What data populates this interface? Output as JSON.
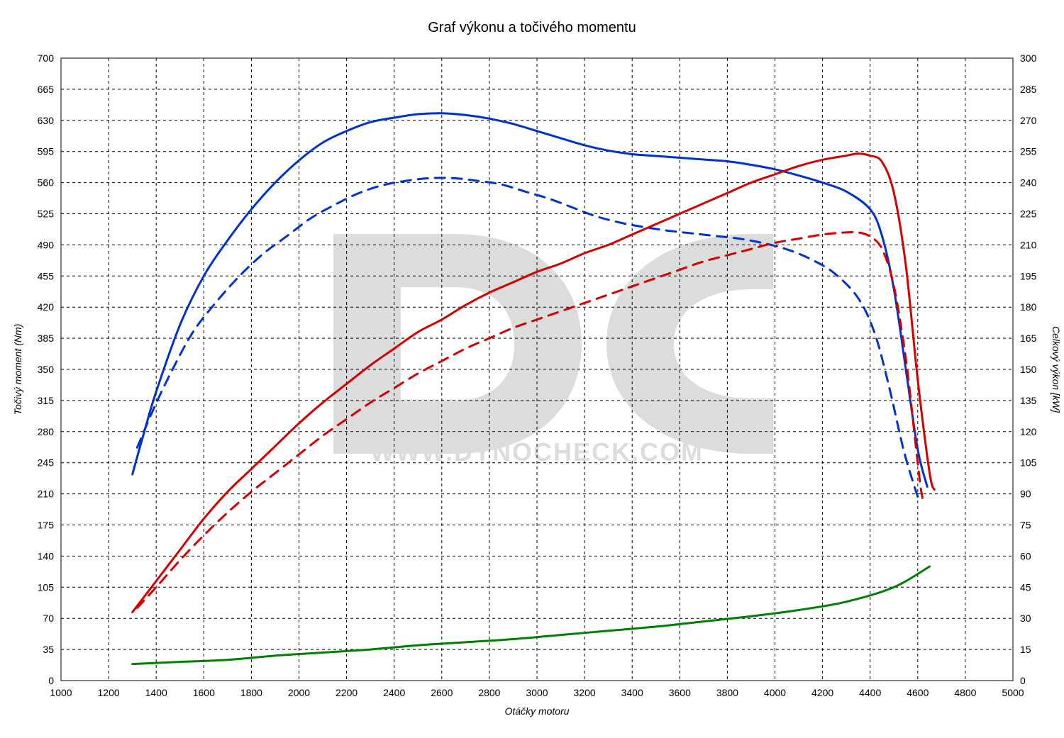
{
  "chart": {
    "type": "line",
    "title": "Graf výkonu a točivého momentu",
    "title_fontsize": 20,
    "background_color": "#ffffff",
    "grid_color": "#000000",
    "grid_dash": "4 4",
    "border_color": "#000000",
    "line_width": 3,
    "dashed_pattern": "14 10",
    "tick_fontsize": 14,
    "axis_label_fontsize": 14,
    "axis_label_style": "italic",
    "watermark": {
      "letters_color": "#dcdcdc",
      "url_text": "WWW.DYNOCHECK.COM",
      "url_color": "#cfcfcf",
      "url_fontsize": 36
    },
    "x": {
      "label": "Otáčky motoru",
      "min": 1000,
      "max": 5000,
      "tick_step": 200
    },
    "y_left": {
      "label": "Točivý moment (Nm)",
      "min": 0,
      "max": 700,
      "tick_step": 35
    },
    "y_right": {
      "label": "Celkový výkon [kW]",
      "min": 0,
      "max": 300,
      "tick_step": 15
    },
    "series": [
      {
        "name": "torque_solid",
        "axis": "left",
        "color": "#0033cc",
        "dashed": false,
        "points": [
          [
            1300,
            232
          ],
          [
            1350,
            280
          ],
          [
            1400,
            325
          ],
          [
            1500,
            400
          ],
          [
            1600,
            455
          ],
          [
            1700,
            495
          ],
          [
            1800,
            530
          ],
          [
            1900,
            560
          ],
          [
            2000,
            585
          ],
          [
            2100,
            605
          ],
          [
            2200,
            618
          ],
          [
            2300,
            628
          ],
          [
            2400,
            633
          ],
          [
            2500,
            637
          ],
          [
            2600,
            638
          ],
          [
            2700,
            636
          ],
          [
            2800,
            632
          ],
          [
            2900,
            626
          ],
          [
            3000,
            618
          ],
          [
            3100,
            610
          ],
          [
            3200,
            602
          ],
          [
            3300,
            596
          ],
          [
            3400,
            592
          ],
          [
            3500,
            590
          ],
          [
            3600,
            588
          ],
          [
            3700,
            586
          ],
          [
            3800,
            584
          ],
          [
            3900,
            580
          ],
          [
            4000,
            575
          ],
          [
            4100,
            568
          ],
          [
            4200,
            560
          ],
          [
            4300,
            550
          ],
          [
            4400,
            530
          ],
          [
            4450,
            500
          ],
          [
            4500,
            440
          ],
          [
            4550,
            350
          ],
          [
            4600,
            260
          ],
          [
            4640,
            218
          ]
        ]
      },
      {
        "name": "torque_dashed",
        "axis": "left",
        "color": "#0033cc",
        "dashed": true,
        "points": [
          [
            1320,
            262
          ],
          [
            1380,
            300
          ],
          [
            1450,
            340
          ],
          [
            1550,
            390
          ],
          [
            1650,
            425
          ],
          [
            1750,
            455
          ],
          [
            1850,
            480
          ],
          [
            1950,
            500
          ],
          [
            2050,
            520
          ],
          [
            2150,
            535
          ],
          [
            2250,
            548
          ],
          [
            2350,
            557
          ],
          [
            2450,
            562
          ],
          [
            2550,
            565
          ],
          [
            2650,
            565
          ],
          [
            2750,
            562
          ],
          [
            2850,
            558
          ],
          [
            2950,
            550
          ],
          [
            3050,
            542
          ],
          [
            3150,
            532
          ],
          [
            3250,
            522
          ],
          [
            3350,
            515
          ],
          [
            3450,
            510
          ],
          [
            3550,
            506
          ],
          [
            3650,
            503
          ],
          [
            3750,
            500
          ],
          [
            3850,
            497
          ],
          [
            3950,
            492
          ],
          [
            4050,
            485
          ],
          [
            4150,
            474
          ],
          [
            4250,
            458
          ],
          [
            4350,
            430
          ],
          [
            4420,
            390
          ],
          [
            4480,
            330
          ],
          [
            4540,
            260
          ],
          [
            4590,
            215
          ],
          [
            4610,
            200
          ]
        ]
      },
      {
        "name": "power_solid",
        "axis": "right",
        "color": "#d40000",
        "dashed": false,
        "points": [
          [
            1300,
            33
          ],
          [
            1400,
            48
          ],
          [
            1500,
            63
          ],
          [
            1600,
            78
          ],
          [
            1700,
            91
          ],
          [
            1800,
            102
          ],
          [
            1900,
            113
          ],
          [
            2000,
            124
          ],
          [
            2100,
            134
          ],
          [
            2200,
            143
          ],
          [
            2300,
            152
          ],
          [
            2400,
            160
          ],
          [
            2500,
            168
          ],
          [
            2600,
            174
          ],
          [
            2700,
            181
          ],
          [
            2800,
            187
          ],
          [
            2900,
            192
          ],
          [
            3000,
            197
          ],
          [
            3100,
            201
          ],
          [
            3200,
            206
          ],
          [
            3300,
            210
          ],
          [
            3400,
            215
          ],
          [
            3500,
            220
          ],
          [
            3600,
            225
          ],
          [
            3700,
            230
          ],
          [
            3800,
            235
          ],
          [
            3900,
            240
          ],
          [
            4000,
            244
          ],
          [
            4100,
            248
          ],
          [
            4200,
            251
          ],
          [
            4300,
            253
          ],
          [
            4350,
            254
          ],
          [
            4400,
            253
          ],
          [
            4450,
            250
          ],
          [
            4500,
            235
          ],
          [
            4550,
            200
          ],
          [
            4600,
            145
          ],
          [
            4650,
            100
          ],
          [
            4670,
            92
          ]
        ]
      },
      {
        "name": "power_dashed",
        "axis": "right",
        "color": "#d40000",
        "dashed": true,
        "points": [
          [
            1320,
            35
          ],
          [
            1400,
            45
          ],
          [
            1500,
            58
          ],
          [
            1600,
            70
          ],
          [
            1700,
            81
          ],
          [
            1800,
            91
          ],
          [
            1900,
            100
          ],
          [
            2000,
            109
          ],
          [
            2100,
            118
          ],
          [
            2200,
            126
          ],
          [
            2300,
            134
          ],
          [
            2400,
            141
          ],
          [
            2500,
            148
          ],
          [
            2600,
            154
          ],
          [
            2700,
            160
          ],
          [
            2800,
            165
          ],
          [
            2900,
            170
          ],
          [
            3000,
            174
          ],
          [
            3100,
            178
          ],
          [
            3200,
            182
          ],
          [
            3300,
            186
          ],
          [
            3400,
            190
          ],
          [
            3500,
            194
          ],
          [
            3600,
            198
          ],
          [
            3700,
            202
          ],
          [
            3800,
            205
          ],
          [
            3900,
            208
          ],
          [
            4000,
            211
          ],
          [
            4100,
            213
          ],
          [
            4200,
            215
          ],
          [
            4300,
            216
          ],
          [
            4350,
            216
          ],
          [
            4400,
            214
          ],
          [
            4450,
            208
          ],
          [
            4500,
            190
          ],
          [
            4550,
            155
          ],
          [
            4590,
            115
          ],
          [
            4610,
            95
          ],
          [
            4620,
            88
          ]
        ]
      },
      {
        "name": "loss_green",
        "axis": "right",
        "color": "#008000",
        "dashed": false,
        "points": [
          [
            1300,
            8
          ],
          [
            1500,
            9
          ],
          [
            1700,
            10
          ],
          [
            1900,
            12
          ],
          [
            2100,
            13.5
          ],
          [
            2300,
            15
          ],
          [
            2500,
            17
          ],
          [
            2700,
            18.5
          ],
          [
            2900,
            20
          ],
          [
            3100,
            22
          ],
          [
            3300,
            24
          ],
          [
            3500,
            26
          ],
          [
            3700,
            28.5
          ],
          [
            3900,
            31
          ],
          [
            4100,
            34
          ],
          [
            4300,
            38
          ],
          [
            4500,
            45
          ],
          [
            4650,
            55
          ]
        ]
      }
    ]
  }
}
